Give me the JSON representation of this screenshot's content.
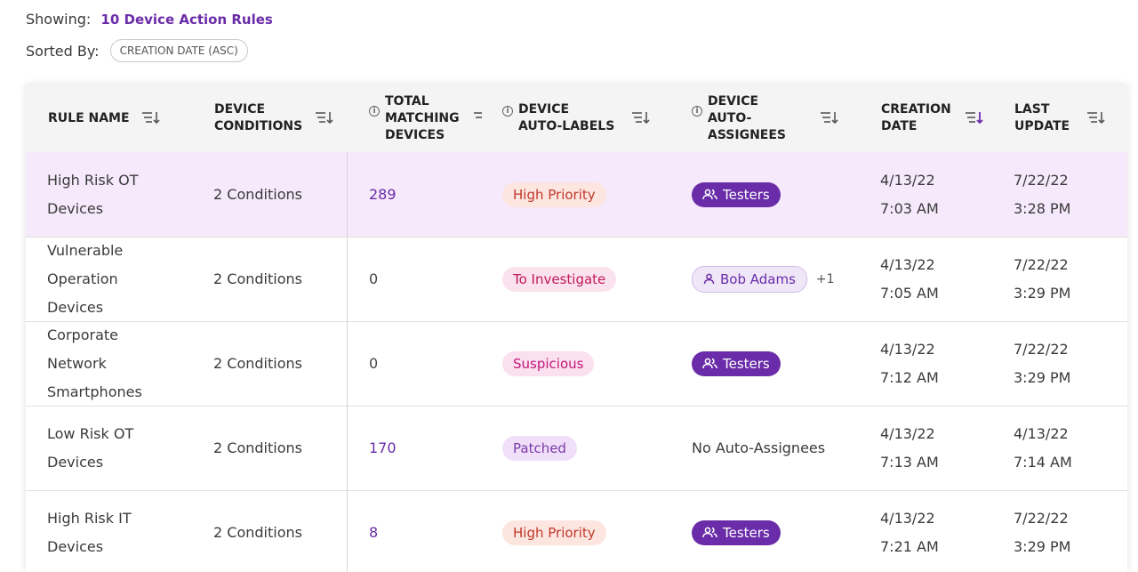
{
  "summary": {
    "showing_label": "Showing:",
    "showing_value": "10 Device Action Rules",
    "sorted_label": "Sorted By:",
    "sorted_value": "CREATION DATE (ASC)"
  },
  "columns": {
    "rule_name": "RULE NAME",
    "device_conditions": "DEVICE\nCONDITIONS",
    "total_matching": "TOTAL\nMATCHING\nDEVICES",
    "auto_labels": "DEVICE\nAUTO-LABELS",
    "auto_assignees": "DEVICE\nAUTO-\nASSIGNEES",
    "creation_date": "CREATION\nDATE",
    "last_update": "LAST\nUPDATE"
  },
  "colors": {
    "accent": "#6a2ca8",
    "row_highlight": "#f5e9fb",
    "active_sort": "#6a2ca8"
  },
  "rows": [
    {
      "name": "High Risk OT\nDevices",
      "conditions": "2 Conditions",
      "matching": "289",
      "label": "High Priority",
      "assignee": "Testers",
      "extra": "",
      "created": "4/13/22\n7:03 AM",
      "updated": "7/22/22\n3:28 PM"
    },
    {
      "name": "Vulnerable\nOperation\nDevices",
      "conditions": "2 Conditions",
      "matching": "0",
      "label": "To Investigate",
      "assignee": "Bob Adams",
      "extra": "+1",
      "created": "4/13/22\n7:05 AM",
      "updated": "7/22/22\n3:29 PM"
    },
    {
      "name": "Corporate\nNetwork\nSmartphones",
      "conditions": "2 Conditions",
      "matching": "0",
      "label": "Suspicious",
      "assignee": "Testers",
      "extra": "",
      "created": "4/13/22\n7:12 AM",
      "updated": "7/22/22\n3:29 PM"
    },
    {
      "name": "Low Risk OT\nDevices",
      "conditions": "2 Conditions",
      "matching": "170",
      "label": "Patched",
      "assignee": "No Auto-Assignees",
      "extra": "",
      "created": "4/13/22\n7:13 AM",
      "updated": "4/13/22\n7:14 AM"
    },
    {
      "name": "High Risk IT\nDevices",
      "conditions": "2 Conditions",
      "matching": "8",
      "label": "High Priority",
      "assignee": "Testers",
      "extra": "",
      "created": "4/13/22\n7:21 AM",
      "updated": "7/22/22\n3:29 PM"
    }
  ]
}
